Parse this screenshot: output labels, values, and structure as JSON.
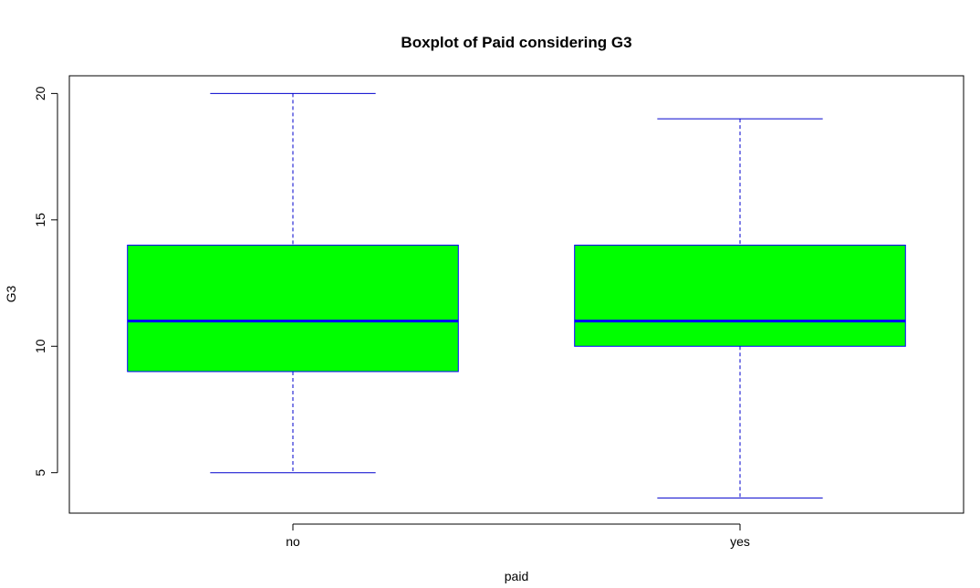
{
  "chart_data": {
    "type": "box",
    "title": "Boxplot of Paid considering G3",
    "xlabel": "paid",
    "ylabel": "G3",
    "categories": [
      "no",
      "yes"
    ],
    "boxes": [
      {
        "category": "no",
        "whisker_low": 5,
        "q1": 9,
        "median": 11,
        "q3": 14,
        "whisker_high": 20
      },
      {
        "category": "yes",
        "whisker_low": 4,
        "q1": 10,
        "median": 11,
        "q3": 14,
        "whisker_high": 19
      }
    ],
    "ylim": [
      3.4,
      20.7
    ],
    "yticks": [
      5,
      10,
      15,
      20
    ],
    "box_fill": "#00ff00",
    "box_border": "#0000ff",
    "median_color": "#0000ff",
    "whisker_color": "#0000cd"
  }
}
